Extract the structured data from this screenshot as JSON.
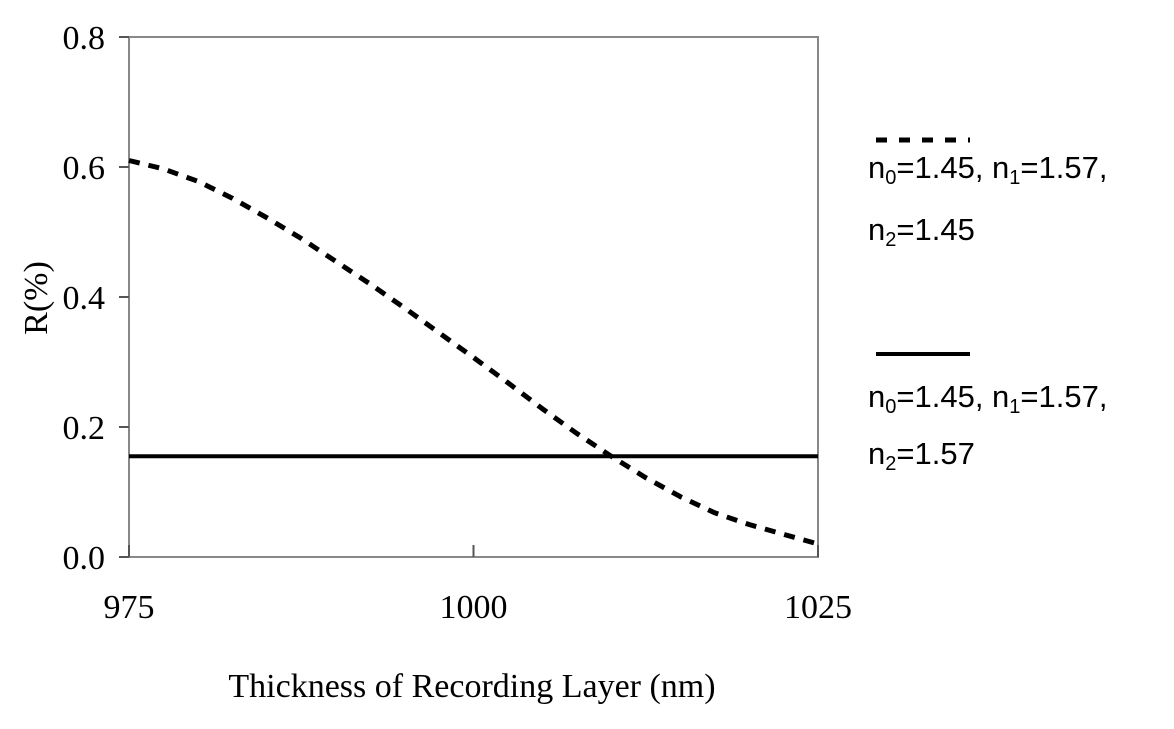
{
  "chart_data": {
    "type": "line",
    "xlabel": "Thickness of Recording Layer (nm)",
    "ylabel": "R(%)",
    "xlim": [
      975,
      1025
    ],
    "ylim": [
      0.0,
      0.8
    ],
    "x_ticks": [
      975,
      1000,
      1025
    ],
    "x_tick_labels": [
      "975",
      "1000",
      "1025"
    ],
    "y_ticks": [
      0.0,
      0.2,
      0.4,
      0.6,
      0.8
    ],
    "y_tick_labels": [
      "0.0",
      "0.2",
      "0.4",
      "0.6",
      "0.8"
    ],
    "grid": false,
    "legend_placement": "right",
    "series": [
      {
        "line_style": "dashed",
        "color": "#000000",
        "legend": {
          "line1": [
            {
              "t": "n"
            },
            {
              "sub": "0"
            },
            {
              "t": "=1.45, n"
            },
            {
              "sub": "1"
            },
            {
              "t": "=1.57,"
            }
          ],
          "line2": [
            {
              "t": "n"
            },
            {
              "sub": "2"
            },
            {
              "t": "=1.45"
            }
          ]
        },
        "x": [
          975,
          977.5,
          980,
          982.5,
          985,
          987.5,
          990,
          992.5,
          995,
          997.5,
          1000,
          1002.5,
          1005,
          1007.5,
          1010,
          1012.5,
          1015,
          1017.5,
          1020,
          1022.5,
          1025
        ],
        "y": [
          0.61,
          0.597,
          0.578,
          0.552,
          0.522,
          0.49,
          0.455,
          0.42,
          0.383,
          0.345,
          0.307,
          0.268,
          0.228,
          0.19,
          0.155,
          0.122,
          0.093,
          0.068,
          0.05,
          0.035,
          0.02
        ]
      },
      {
        "line_style": "solid",
        "color": "#000000",
        "legend": {
          "line1": [
            {
              "t": "n"
            },
            {
              "sub": "0"
            },
            {
              "t": "=1.45, n"
            },
            {
              "sub": "1"
            },
            {
              "t": "=1.57,"
            }
          ],
          "line2": [
            {
              "t": "n"
            },
            {
              "sub": "2"
            },
            {
              "t": "=1.57"
            }
          ]
        },
        "x": [
          975,
          1025
        ],
        "y": [
          0.155,
          0.155
        ]
      }
    ]
  }
}
